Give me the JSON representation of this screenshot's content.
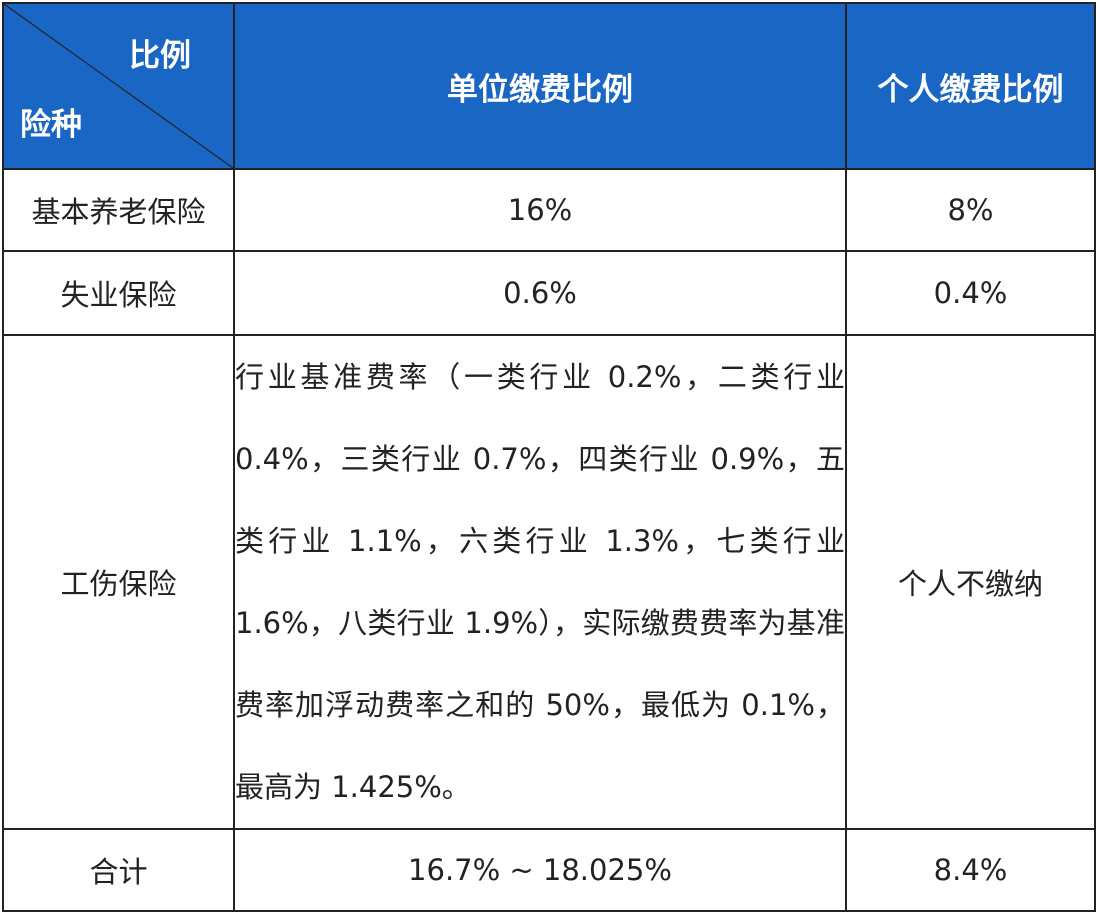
{
  "table": {
    "header": {
      "corner_top": "比例",
      "corner_bottom": "险种",
      "company_rate": "单位缴费比例",
      "personal_rate": "个人缴费比例"
    },
    "rows": [
      {
        "type": "基本养老保险",
        "company": "16%",
        "personal": "8%"
      },
      {
        "type": "失业保险",
        "company": "0.6%",
        "personal": "0.4%"
      },
      {
        "type": "工伤保险",
        "company": "行业基准费率（一类行业 0.2%，二类行业 0.4%，三类行业 0.7%，四类行业 0.9%，五类行业 1.1%，六类行业 1.3%，七类行业 1.6%，八类行业 1.9%），实际缴费费率为基准费率加浮动费率之和的 50%，最低为 0.1%，最高为 1.425%。",
        "personal": "个人不缴纳"
      },
      {
        "type": "合计",
        "company": "16.7% ~ 18.025%",
        "personal": "8.4%"
      }
    ]
  },
  "colors": {
    "header_bg": "#1a66c4",
    "header_text": "#ffffff",
    "border": "#222222",
    "body_text": "#222222"
  }
}
